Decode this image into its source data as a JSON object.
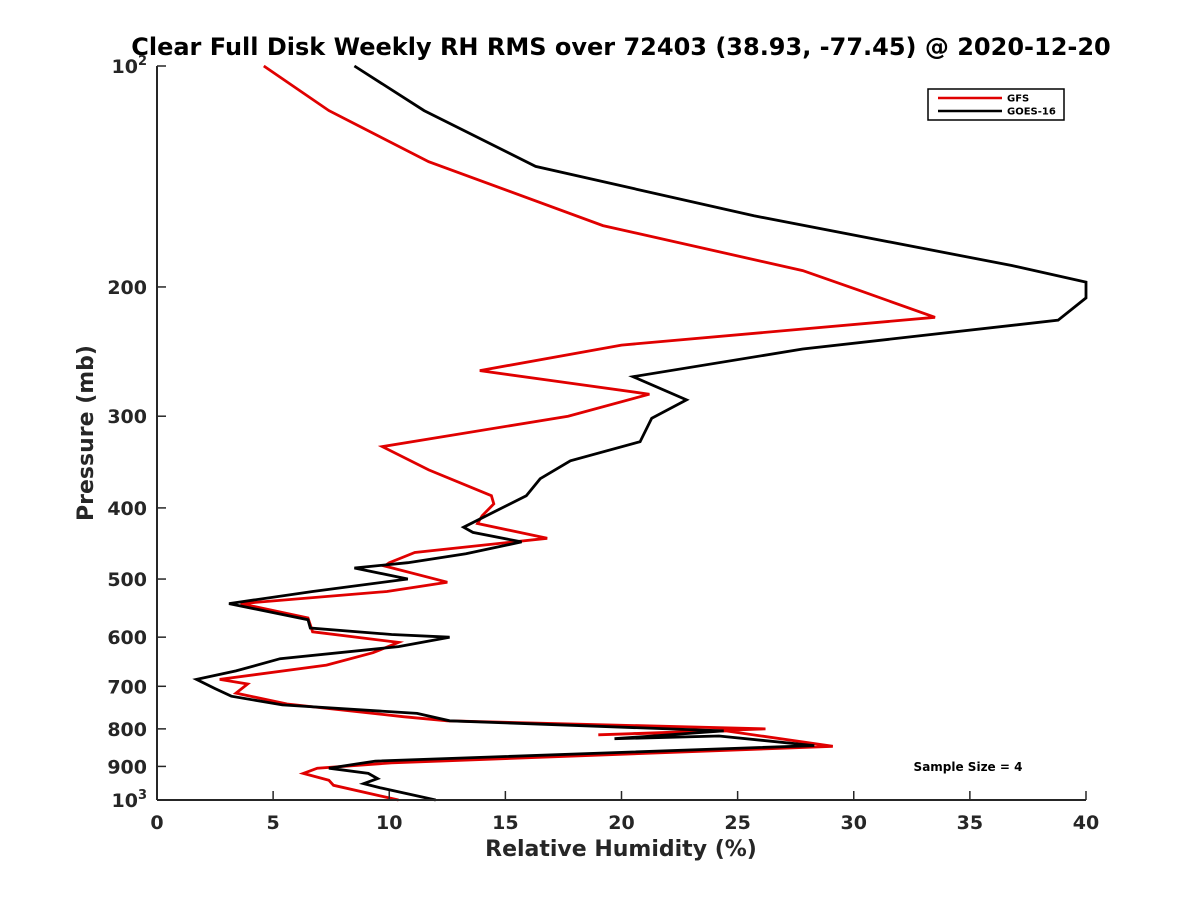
{
  "chart_data": {
    "type": "line",
    "title": "Clear Full Disk Weekly RH RMS over 72403 (38.93, -77.45) @ 2020-12-20",
    "xlabel": "Relative Humidity (%)",
    "ylabel": "Pressure (mb)",
    "xlim": [
      0,
      40
    ],
    "ylim": [
      100,
      1000
    ],
    "yscale": "log",
    "y_reversed": true,
    "xticks": [
      "0",
      "5",
      "10",
      "15",
      "20",
      "25",
      "30",
      "35",
      "40"
    ],
    "yticks": [
      {
        "value": 100,
        "base": "10",
        "exp": "2"
      },
      {
        "value": 200,
        "label": "200"
      },
      {
        "value": 300,
        "label": "300"
      },
      {
        "value": 400,
        "label": "400"
      },
      {
        "value": 500,
        "label": "500"
      },
      {
        "value": 600,
        "label": "600"
      },
      {
        "value": 700,
        "label": "700"
      },
      {
        "value": 800,
        "label": "800"
      },
      {
        "value": 900,
        "label": "900"
      },
      {
        "value": 1000,
        "base": "10",
        "exp": "3"
      }
    ],
    "legend_position": "top-right",
    "annotation": "Sample Size = 4",
    "series": [
      {
        "name": "GFS",
        "color": "#e00000",
        "x": [
          4.6,
          7.4,
          11.7,
          19.2,
          27.8,
          30.2,
          33.5,
          20.0,
          13.9,
          21.2,
          17.7,
          9.7,
          11.7,
          14.4,
          14.5,
          14.0,
          13.8,
          16.8,
          11.1,
          10.0,
          9.8,
          12.5,
          9.9,
          3.6,
          6.5,
          6.7,
          10.4,
          9.3,
          7.3,
          2.7,
          3.9,
          3.4,
          5.6,
          10.6,
          12.5,
          26.2,
          19.0,
          24.5,
          29.1,
          10.1,
          6.9,
          6.3,
          7.4,
          7.6,
          10.4
        ],
        "y": [
          100,
          115,
          135,
          165,
          190,
          202,
          220,
          240,
          260,
          280,
          300,
          330,
          355,
          385,
          395,
          410,
          420,
          440,
          460,
          475,
          480,
          505,
          520,
          540,
          565,
          590,
          610,
          630,
          655,
          685,
          695,
          715,
          740,
          770,
          780,
          800,
          815,
          805,
          845,
          890,
          905,
          920,
          940,
          955,
          1000
        ]
      },
      {
        "name": "GOES-16",
        "color": "#000000",
        "x": [
          8.5,
          11.5,
          16.3,
          25.7,
          36.8,
          40.0,
          40.0,
          38.8,
          27.8,
          20.5,
          22.8,
          21.3,
          20.8,
          17.8,
          16.5,
          15.9,
          13.2,
          13.6,
          15.7,
          13.3,
          10.8,
          8.5,
          10.8,
          6.7,
          3.1,
          6.5,
          6.6,
          10.1,
          12.6,
          10.4,
          5.3,
          3.4,
          1.7,
          2.5,
          3.2,
          5.4,
          11.2,
          12.6,
          24.4,
          19.7,
          24.2,
          28.3,
          9.4,
          7.4,
          9.1,
          9.5,
          8.9,
          9.6,
          12.0
        ],
        "y": [
          100,
          115,
          137,
          160,
          187,
          197,
          207,
          222,
          243,
          265,
          285,
          302,
          325,
          345,
          365,
          385,
          425,
          432,
          445,
          462,
          475,
          483,
          500,
          520,
          540,
          568,
          583,
          595,
          600,
          618,
          642,
          667,
          685,
          705,
          722,
          742,
          762,
          780,
          805,
          825,
          818,
          843,
          885,
          905,
          920,
          935,
          950,
          962,
          1000
        ]
      }
    ]
  }
}
